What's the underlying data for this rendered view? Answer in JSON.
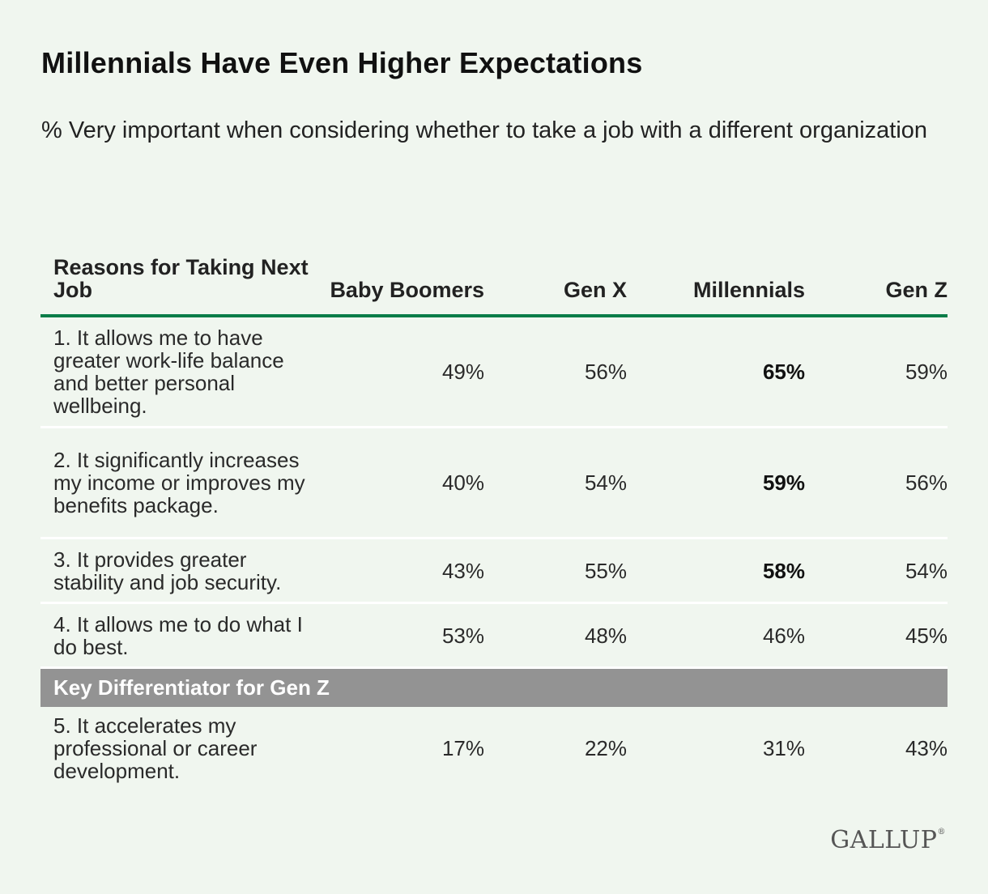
{
  "title": "Millennials Have Even Higher Expectations",
  "subtitle": "% Very important when considering whether to take a job with a different organization",
  "logo": "GALLUP",
  "chart_data": {
    "type": "table",
    "title": "Millennials Have Even Higher Expectations",
    "subtitle": "% Very important when considering whether to take a job with a different organization",
    "columns": [
      "Reasons for Taking Next Job",
      "Baby Boomers",
      "Gen X",
      "Millennials",
      "Gen Z"
    ],
    "rows": [
      {
        "label": "1. It allows me to have greater work-life balance and better personal wellbeing.",
        "values": [
          "49%",
          "56%",
          "65%",
          "59%"
        ],
        "bold_index": 2
      },
      {
        "label": "2. It significantly increases my income or improves my benefits package.",
        "values": [
          "40%",
          "54%",
          "59%",
          "56%"
        ],
        "bold_index": 2
      },
      {
        "label": "3. It provides greater stability and job security.",
        "values": [
          "43%",
          "55%",
          "58%",
          "54%"
        ],
        "bold_index": 2
      },
      {
        "label": "4. It allows me to do what I do best.",
        "values": [
          "53%",
          "48%",
          "46%",
          "45%"
        ],
        "bold_index": -1
      }
    ],
    "section_label": "Key Differentiator for Gen Z",
    "section_rows": [
      {
        "label": "5. It accelerates my professional or career development.",
        "values": [
          "17%",
          "22%",
          "31%",
          "43%"
        ],
        "bold_index": -1
      }
    ],
    "colors": {
      "header_rule": "#0a7d48",
      "section_bar": "#939393",
      "background": "#f0f6ef"
    }
  }
}
